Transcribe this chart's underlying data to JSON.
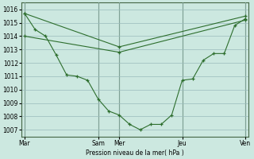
{
  "background_color": "#cce8e0",
  "grid_color": "#99bbbb",
  "line_color": "#2d6e2d",
  "marker_color": "#2d6e2d",
  "xlabel_text": "Pression niveau de la mer( hPa )",
  "ylim": [
    1006.5,
    1016.5
  ],
  "xlim": [
    -0.3,
    21.3
  ],
  "yticks": [
    1007,
    1008,
    1009,
    1010,
    1011,
    1012,
    1013,
    1014,
    1015,
    1016
  ],
  "xtick_labels": [
    "Mar",
    "Sam",
    "Mer",
    "Jeu",
    "Ven"
  ],
  "xtick_positions": [
    0,
    7,
    9,
    15,
    21
  ],
  "vlines": [
    0,
    7,
    9,
    15,
    21
  ],
  "series": [
    {
      "x": [
        0,
        1,
        2,
        3,
        4,
        5,
        6,
        7,
        8,
        9,
        10,
        11,
        12,
        13,
        14,
        15,
        16,
        17,
        18,
        19,
        20,
        21
      ],
      "y": [
        1015.7,
        1014.5,
        1014.0,
        1012.6,
        1011.1,
        1011.0,
        1010.7,
        1009.3,
        1008.4,
        1008.1,
        1007.4,
        1007.0,
        1007.4,
        1007.4,
        1008.1,
        1010.7,
        1010.8,
        1012.2,
        1012.7,
        1012.7,
        1014.8,
        1015.3
      ]
    },
    {
      "x": [
        0,
        9,
        21
      ],
      "y": [
        1015.7,
        1013.2,
        1015.5
      ]
    },
    {
      "x": [
        0,
        9,
        21
      ],
      "y": [
        1014.0,
        1012.8,
        1015.2
      ]
    }
  ]
}
